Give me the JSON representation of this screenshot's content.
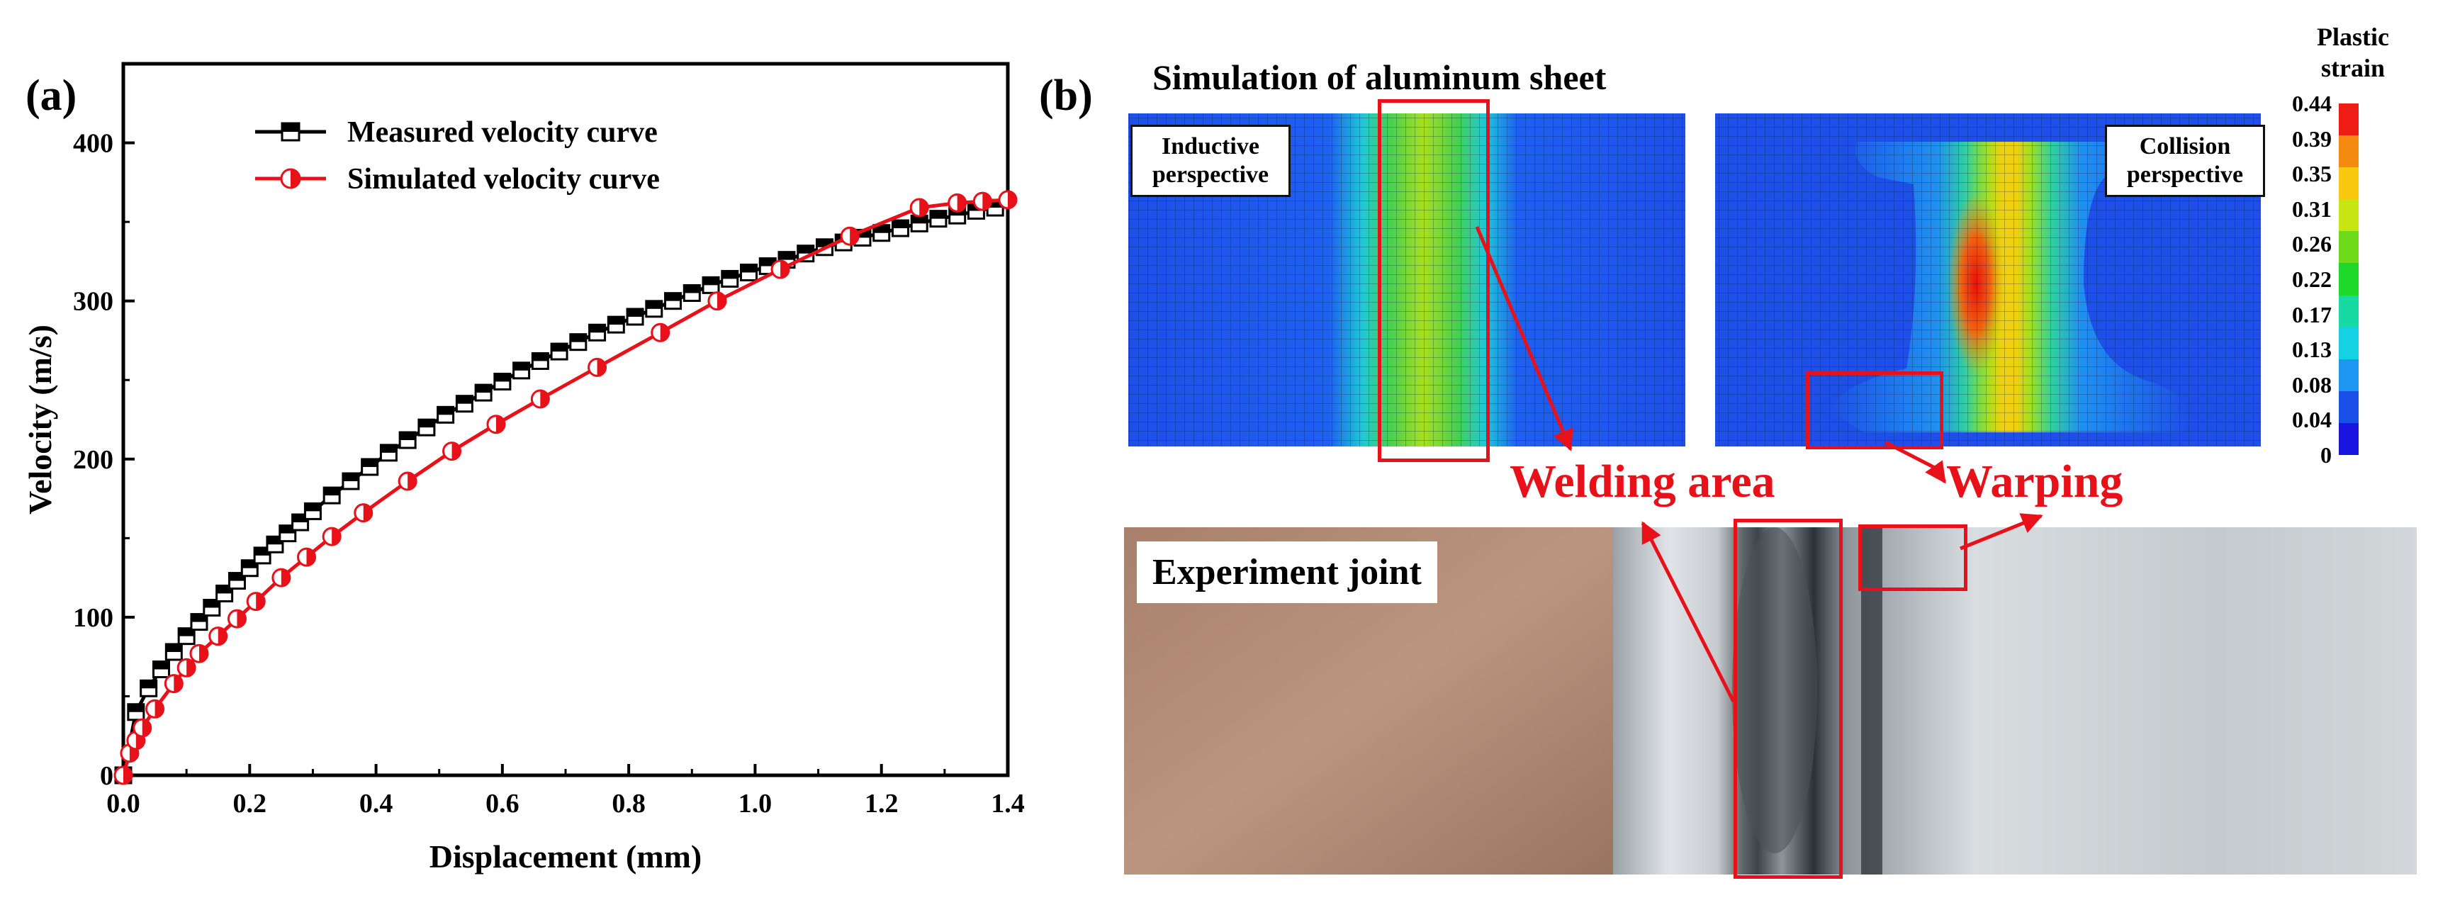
{
  "panel_a_label": "(a)",
  "panel_b_label": "(b)",
  "chart_data": {
    "type": "line",
    "title": "",
    "xlabel": "Displacement  (mm)",
    "ylabel": "Velocity (m/s)",
    "xlim": [
      0,
      1.4
    ],
    "ylim": [
      0,
      450
    ],
    "x_ticks": [
      0.0,
      0.2,
      0.4,
      0.6,
      0.8,
      1.0,
      1.2,
      1.4
    ],
    "x_tick_labels": [
      "0.0",
      "0.2",
      "0.4",
      "0.6",
      "0.8",
      "1.0",
      "1.2",
      "1.4"
    ],
    "y_ticks": [
      0,
      100,
      200,
      300,
      400
    ],
    "y_tick_labels": [
      "0",
      "100",
      "200",
      "300",
      "400"
    ],
    "legend_position": "top-left",
    "series": [
      {
        "name": "Measured velocity curve",
        "color": "#000000",
        "marker": "half-filled-square",
        "x": [
          0.0,
          0.02,
          0.04,
          0.06,
          0.08,
          0.1,
          0.12,
          0.14,
          0.16,
          0.18,
          0.2,
          0.22,
          0.24,
          0.26,
          0.28,
          0.3,
          0.33,
          0.36,
          0.39,
          0.42,
          0.45,
          0.48,
          0.51,
          0.54,
          0.57,
          0.6,
          0.63,
          0.66,
          0.69,
          0.72,
          0.75,
          0.78,
          0.81,
          0.84,
          0.87,
          0.9,
          0.93,
          0.96,
          0.99,
          1.02,
          1.05,
          1.08,
          1.11,
          1.14,
          1.17,
          1.2,
          1.23,
          1.26,
          1.29,
          1.32,
          1.35,
          1.38
        ],
        "y": [
          0,
          40,
          55,
          67,
          78,
          88,
          97,
          106,
          115,
          123,
          131,
          139,
          146,
          153,
          160,
          167,
          177,
          186,
          195,
          204,
          212,
          220,
          228,
          235,
          242,
          249,
          256,
          262,
          268,
          274,
          280,
          285,
          290,
          295,
          300,
          305,
          310,
          314,
          318,
          322,
          326,
          330,
          334,
          337,
          340,
          343,
          346,
          349,
          352,
          354,
          357,
          359
        ]
      },
      {
        "name": "Simulated velocity curve",
        "color": "#e8111a",
        "marker": "half-filled-circle",
        "x": [
          0.0,
          0.01,
          0.02,
          0.03,
          0.05,
          0.08,
          0.1,
          0.12,
          0.15,
          0.18,
          0.21,
          0.25,
          0.29,
          0.33,
          0.38,
          0.45,
          0.52,
          0.59,
          0.66,
          0.75,
          0.85,
          0.94,
          1.04,
          1.15,
          1.26,
          1.32,
          1.36,
          1.4
        ],
        "y": [
          0,
          14,
          22,
          30,
          42,
          58,
          68,
          77,
          88,
          99,
          110,
          125,
          138,
          151,
          166,
          186,
          205,
          222,
          238,
          258,
          280,
          300,
          320,
          341,
          359,
          362,
          363,
          364
        ]
      }
    ]
  },
  "panel_b": {
    "sim_title": "Simulation of aluminum sheet",
    "inductive_label": "Inductive perspective",
    "collision_label": "Collision perspective",
    "welding_area_label": "Welding area",
    "warping_label": "Warping",
    "experiment_label": "Experiment joint",
    "colorbar_title": "Plastic strain",
    "colorbar_ticks": [
      "0.44",
      "0.39",
      "0.35",
      "0.31",
      "0.26",
      "0.22",
      "0.17",
      "0.13",
      "0.08",
      "0.04",
      "0"
    ],
    "colorbar_colors": [
      "#ee1c14",
      "#f58a10",
      "#f8c80e",
      "#c8e614",
      "#6fda1a",
      "#1ed82a",
      "#16d9a4",
      "#14d2e4",
      "#1c96f0",
      "#1a50e8",
      "#1a14e0"
    ],
    "accent_red": "#e8111a"
  }
}
